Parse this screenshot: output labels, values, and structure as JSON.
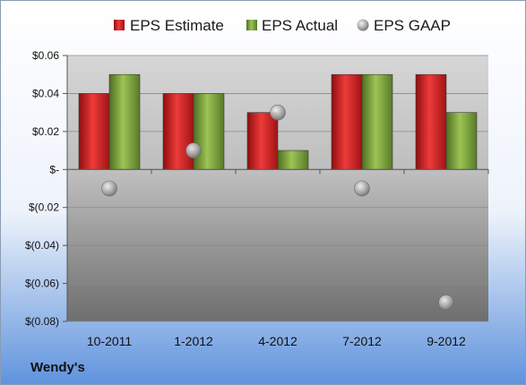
{
  "chart_data": {
    "type": "bar",
    "title": "",
    "company": "Wendy's",
    "categories": [
      "10-2011",
      "1-2012",
      "4-2012",
      "7-2012",
      "9-2012"
    ],
    "series": [
      {
        "name": "EPS Estimate",
        "kind": "bar",
        "color": "#cc2020",
        "values": [
          0.04,
          0.04,
          0.03,
          0.05,
          0.05
        ]
      },
      {
        "name": "EPS Actual",
        "kind": "bar",
        "color": "#7fa03a",
        "values": [
          0.05,
          0.04,
          0.01,
          0.05,
          0.03
        ]
      },
      {
        "name": "EPS GAAP",
        "kind": "marker",
        "color": "#9a9a9a",
        "values": [
          -0.01,
          0.01,
          0.03,
          -0.01,
          -0.07
        ]
      }
    ],
    "ylim": [
      -0.08,
      0.06
    ],
    "yticks": [
      0.06,
      0.04,
      0.02,
      0,
      -0.02,
      -0.04,
      -0.06,
      -0.08
    ],
    "ytick_labels": [
      "$0.06",
      "$0.04",
      "$0.02",
      "$-",
      "$(0.02",
      "$(0.04)",
      "$(0.06)",
      "$(0.08)"
    ],
    "grid": true,
    "legend_position": "top"
  }
}
